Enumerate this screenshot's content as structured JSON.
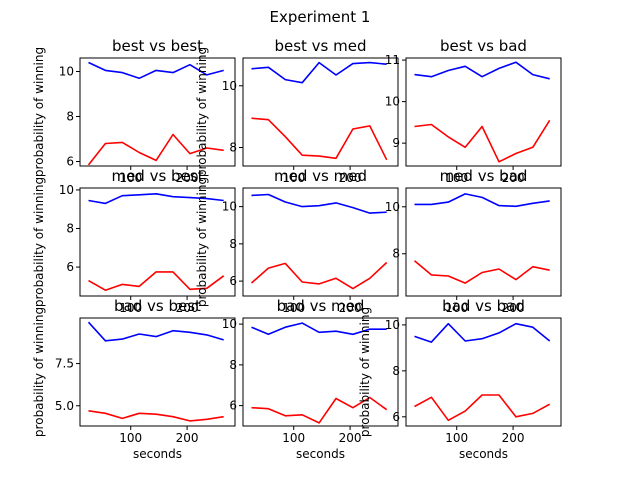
{
  "figure": {
    "title": "Experiment 1"
  },
  "chart_data": [
    {
      "type": "line",
      "title": "best vs best",
      "xlabel": "",
      "ylabel": "probability of winning",
      "xlim": [
        10,
        285
      ],
      "ylim": [
        5.8,
        10.6
      ],
      "xticks": [
        {
          "v": 100,
          "label": "100"
        },
        {
          "v": 200,
          "label": "200"
        }
      ],
      "yticks": [
        {
          "v": 6,
          "label": "6"
        },
        {
          "v": 8,
          "label": "8"
        },
        {
          "v": 10,
          "label": "10"
        }
      ],
      "x": [
        25,
        55,
        85,
        115,
        145,
        175,
        205,
        235,
        265
      ],
      "series": [
        {
          "color": "#0000ff",
          "values": [
            10.4,
            10.05,
            9.95,
            9.7,
            10.05,
            9.95,
            10.3,
            9.85,
            10.05
          ]
        },
        {
          "color": "#ff0000",
          "values": [
            5.85,
            6.8,
            6.85,
            6.4,
            6.05,
            7.2,
            6.35,
            6.6,
            6.5
          ]
        }
      ]
    },
    {
      "type": "line",
      "title": "best vs med",
      "xlabel": "",
      "ylabel": "probability of winning",
      "xlim": [
        10,
        285
      ],
      "ylim": [
        7.4,
        10.9
      ],
      "xticks": [
        {
          "v": 100,
          "label": "100"
        },
        {
          "v": 200,
          "label": "200"
        }
      ],
      "yticks": [
        {
          "v": 8,
          "label": "8"
        },
        {
          "v": 10,
          "label": "10"
        }
      ],
      "x": [
        25,
        55,
        85,
        115,
        145,
        175,
        205,
        235,
        265
      ],
      "series": [
        {
          "color": "#0000ff",
          "values": [
            10.55,
            10.6,
            10.2,
            10.1,
            10.75,
            10.35,
            10.72,
            10.75,
            10.7
          ]
        },
        {
          "color": "#ff0000",
          "values": [
            8.95,
            8.9,
            8.35,
            7.75,
            7.72,
            7.65,
            8.6,
            8.7,
            7.6
          ]
        }
      ]
    },
    {
      "type": "line",
      "title": "best vs bad",
      "xlabel": "",
      "ylabel": "",
      "xlim": [
        10,
        285
      ],
      "ylim": [
        8.45,
        11.05
      ],
      "xticks": [
        {
          "v": 100,
          "label": "100"
        },
        {
          "v": 200,
          "label": "200"
        }
      ],
      "yticks": [
        {
          "v": 9,
          "label": "9"
        },
        {
          "v": 10,
          "label": "10"
        },
        {
          "v": 11,
          "label": "11"
        }
      ],
      "x": [
        25,
        55,
        85,
        115,
        145,
        175,
        205,
        235,
        265
      ],
      "series": [
        {
          "color": "#0000ff",
          "values": [
            10.65,
            10.6,
            10.75,
            10.85,
            10.6,
            10.8,
            10.95,
            10.65,
            10.55
          ]
        },
        {
          "color": "#ff0000",
          "values": [
            9.4,
            9.45,
            9.15,
            8.9,
            9.4,
            8.55,
            8.75,
            8.9,
            9.55
          ]
        }
      ]
    },
    {
      "type": "line",
      "title": "med vs best",
      "xlabel": "",
      "ylabel": "probability of winning",
      "xlim": [
        10,
        285
      ],
      "ylim": [
        4.5,
        10.1
      ],
      "xticks": [
        {
          "v": 100,
          "label": "100"
        },
        {
          "v": 200,
          "label": "200"
        }
      ],
      "yticks": [
        {
          "v": 6,
          "label": "6"
        },
        {
          "v": 8,
          "label": "8"
        },
        {
          "v": 10,
          "label": "10"
        }
      ],
      "x": [
        25,
        55,
        85,
        115,
        145,
        175,
        205,
        235,
        265
      ],
      "series": [
        {
          "color": "#0000ff",
          "values": [
            9.45,
            9.3,
            9.7,
            9.75,
            9.8,
            9.65,
            9.6,
            9.55,
            9.45
          ]
        },
        {
          "color": "#ff0000",
          "values": [
            5.3,
            4.8,
            5.1,
            5.0,
            5.75,
            5.75,
            4.85,
            4.9,
            5.55
          ]
        }
      ]
    },
    {
      "type": "line",
      "title": "med vs med",
      "xlabel": "",
      "ylabel": "probability of winning",
      "xlim": [
        10,
        285
      ],
      "ylim": [
        5.2,
        11.0
      ],
      "xticks": [
        {
          "v": 100,
          "label": "100"
        },
        {
          "v": 200,
          "label": "200"
        }
      ],
      "yticks": [
        {
          "v": 6,
          "label": "6"
        },
        {
          "v": 8,
          "label": "8"
        },
        {
          "v": 10,
          "label": "10"
        }
      ],
      "x": [
        25,
        55,
        85,
        115,
        145,
        175,
        205,
        235,
        265
      ],
      "series": [
        {
          "color": "#0000ff",
          "values": [
            10.6,
            10.65,
            10.25,
            10.0,
            10.05,
            10.2,
            9.95,
            9.65,
            9.7
          ]
        },
        {
          "color": "#ff0000",
          "values": [
            5.9,
            6.7,
            6.95,
            5.95,
            5.85,
            6.15,
            5.6,
            6.15,
            7.0
          ]
        }
      ]
    },
    {
      "type": "line",
      "title": "med vs bad",
      "xlabel": "",
      "ylabel": "",
      "xlim": [
        10,
        285
      ],
      "ylim": [
        6.2,
        10.8
      ],
      "xticks": [
        {
          "v": 100,
          "label": "100"
        },
        {
          "v": 200,
          "label": "200"
        }
      ],
      "yticks": [
        {
          "v": 8,
          "label": "8"
        },
        {
          "v": 10,
          "label": "10"
        }
      ],
      "x": [
        25,
        55,
        85,
        115,
        145,
        175,
        205,
        235,
        265
      ],
      "series": [
        {
          "color": "#0000ff",
          "values": [
            10.1,
            10.1,
            10.2,
            10.55,
            10.4,
            10.05,
            10.02,
            10.15,
            10.25
          ]
        },
        {
          "color": "#ff0000",
          "values": [
            7.7,
            7.1,
            7.05,
            6.75,
            7.2,
            7.35,
            6.9,
            7.45,
            7.3
          ]
        }
      ]
    },
    {
      "type": "line",
      "title": "bad vs best",
      "xlabel": "seconds",
      "ylabel": "probability of winning",
      "xlim": [
        10,
        285
      ],
      "ylim": [
        3.8,
        10.2
      ],
      "xticks": [
        {
          "v": 100,
          "label": "100"
        },
        {
          "v": 200,
          "label": "200"
        }
      ],
      "yticks": [
        {
          "v": 5,
          "label": "5.0"
        },
        {
          "v": 7.5,
          "label": "7.5"
        }
      ],
      "x": [
        25,
        55,
        85,
        115,
        145,
        175,
        205,
        235,
        265
      ],
      "series": [
        {
          "color": "#0000ff",
          "values": [
            9.95,
            8.85,
            8.95,
            9.25,
            9.1,
            9.45,
            9.35,
            9.2,
            8.9
          ]
        },
        {
          "color": "#ff0000",
          "values": [
            4.7,
            4.55,
            4.25,
            4.55,
            4.5,
            4.35,
            4.1,
            4.2,
            4.35
          ]
        }
      ]
    },
    {
      "type": "line",
      "title": "bad vs med",
      "xlabel": "seconds",
      "ylabel": "",
      "xlim": [
        10,
        285
      ],
      "ylim": [
        5.0,
        10.3
      ],
      "xticks": [
        {
          "v": 100,
          "label": "100"
        },
        {
          "v": 200,
          "label": "200"
        }
      ],
      "yticks": [
        {
          "v": 6,
          "label": "6"
        },
        {
          "v": 8,
          "label": "8"
        },
        {
          "v": 10,
          "label": "10"
        }
      ],
      "x": [
        25,
        55,
        85,
        115,
        145,
        175,
        205,
        235,
        265
      ],
      "series": [
        {
          "color": "#0000ff",
          "values": [
            9.85,
            9.5,
            9.85,
            10.05,
            9.6,
            9.65,
            9.5,
            9.75,
            9.75
          ]
        },
        {
          "color": "#ff0000",
          "values": [
            5.9,
            5.85,
            5.5,
            5.55,
            5.15,
            6.35,
            5.9,
            6.4,
            5.8
          ]
        }
      ]
    },
    {
      "type": "line",
      "title": "bad vs bad",
      "xlabel": "seconds",
      "ylabel": "probability of winning",
      "xlim": [
        10,
        285
      ],
      "ylim": [
        5.6,
        10.3
      ],
      "xticks": [
        {
          "v": 100,
          "label": "100"
        },
        {
          "v": 200,
          "label": "200"
        }
      ],
      "yticks": [
        {
          "v": 6,
          "label": "6"
        },
        {
          "v": 8,
          "label": "8"
        },
        {
          "v": 10,
          "label": "10"
        }
      ],
      "x": [
        25,
        55,
        85,
        115,
        145,
        175,
        205,
        235,
        265
      ],
      "series": [
        {
          "color": "#0000ff",
          "values": [
            9.5,
            9.25,
            10.05,
            9.3,
            9.4,
            9.65,
            10.05,
            9.9,
            9.3
          ]
        },
        {
          "color": "#ff0000",
          "values": [
            6.45,
            6.85,
            5.85,
            6.25,
            6.95,
            6.95,
            6.0,
            6.15,
            6.55
          ]
        }
      ]
    }
  ]
}
